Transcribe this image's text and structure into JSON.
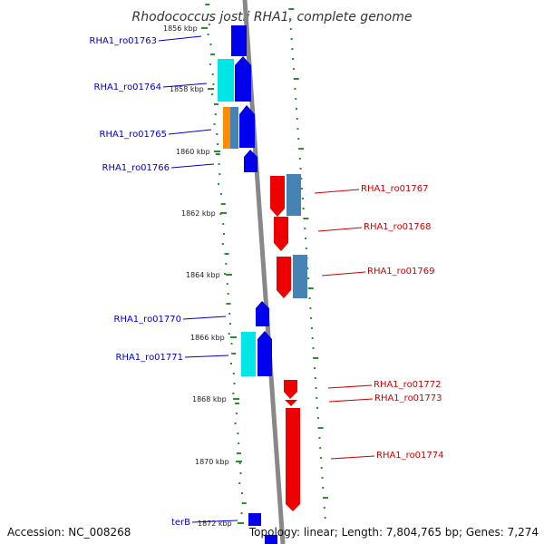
{
  "title": "Rhodococcus jostii RHA1, complete genome",
  "footer": {
    "accession": "Accession: NC_008268",
    "summary": "Topology: linear; Length: 7,804,765 bp; Genes: 7,274"
  },
  "colors": {
    "plus_strand_cds": "#0000ee",
    "plus_strand_other": "#00e5e5",
    "minus_strand_cds": "#ee0000",
    "minus_strand_other": "#4682b4",
    "rna_feature": "#ff8c00",
    "backbone": "#888888",
    "gc_ticks": "#2e8b2e"
  },
  "kbp_ticks": [
    "1856 kbp",
    "1858 kbp",
    "1860 kbp",
    "1862 kbp",
    "1864 kbp",
    "1866 kbp",
    "1868 kbp",
    "1870 kbp",
    "1872 kbp"
  ],
  "left_labels": [
    "RHA1_ro01763",
    "RHA1_ro01764",
    "RHA1_ro01765",
    "RHA1_ro01766",
    "RHA1_ro01770",
    "RHA1_ro01771",
    "terB"
  ],
  "right_labels": [
    "RHA1_ro01767",
    "RHA1_ro01768",
    "RHA1_ro01769",
    "RHA1_ro01772",
    "RHA1_ro01773",
    "RHA1_ro01774"
  ]
}
